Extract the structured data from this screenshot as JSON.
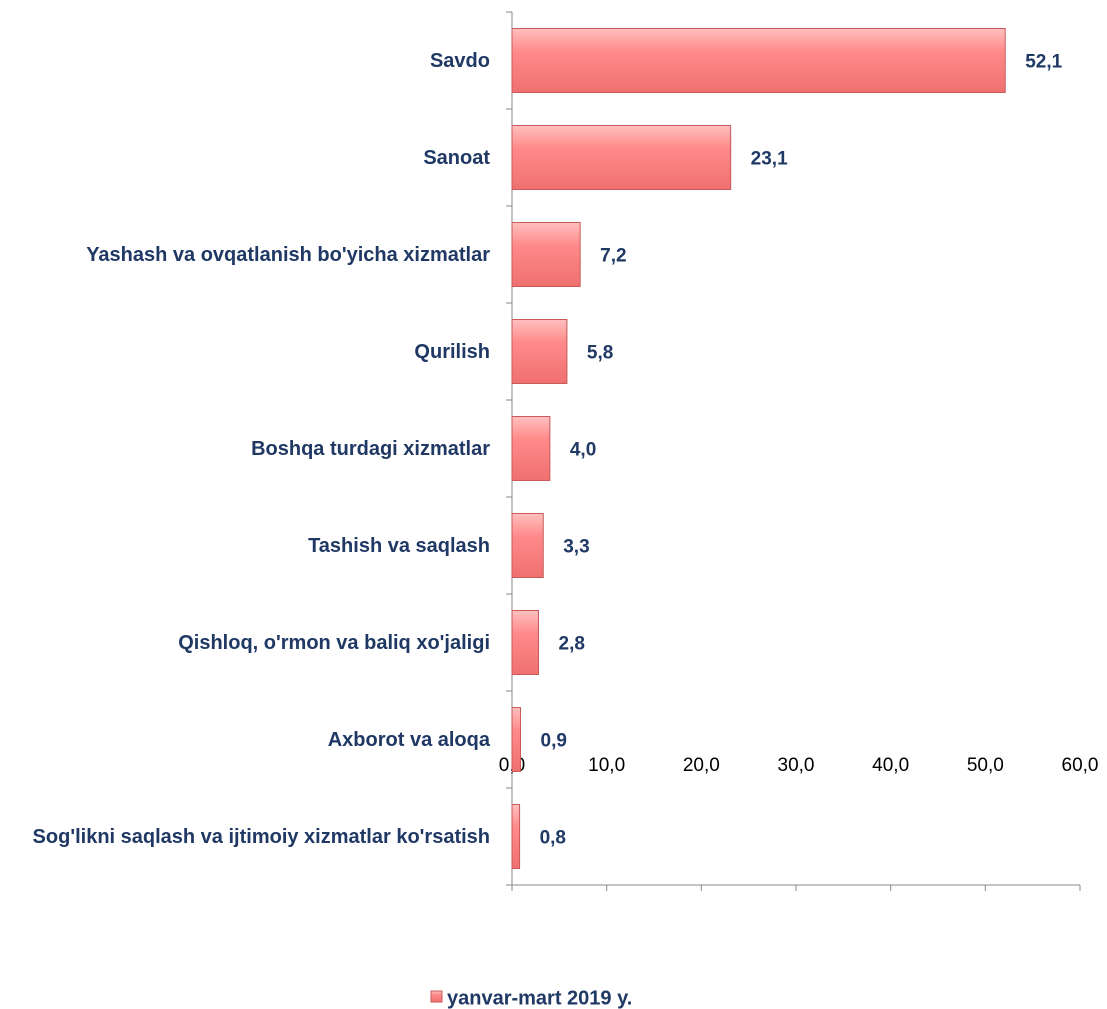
{
  "chart_data": {
    "type": "barh",
    "categories": [
      "Savdo",
      "Sanoat",
      "Yashash va ovqatlanish bo'yicha xizmatlar",
      "Qurilish",
      "Boshqa turdagi xizmatlar",
      "Tashish va saqlash",
      "Qishloq, o'rmon va baliq xo'jaligi",
      "Axborot va aloqa",
      "Sog'likni saqlash va ijtimoiy xizmatlar ko'rsatish"
    ],
    "series": [
      {
        "name": "yanvar-mart 2019 y.",
        "color": "#ff8080",
        "values": [
          52.1,
          23.1,
          7.2,
          5.8,
          4.0,
          3.3,
          2.8,
          0.9,
          0.8
        ],
        "value_labels": [
          "52,1",
          "23,1",
          "7,2",
          "5,8",
          "4,0",
          "3,3",
          "2,8",
          "0,9",
          "0,8"
        ]
      }
    ],
    "xlim": [
      0,
      60
    ],
    "xticks": [
      {
        "value": 0,
        "label": "0,0"
      },
      {
        "value": 10,
        "label": "10,0"
      },
      {
        "value": 20,
        "label": "20,0"
      },
      {
        "value": 30,
        "label": "30,0"
      },
      {
        "value": 40,
        "label": "40,0"
      },
      {
        "value": 50,
        "label": "50,0"
      },
      {
        "value": 60,
        "label": "60,0"
      }
    ],
    "legend": "bottom"
  }
}
